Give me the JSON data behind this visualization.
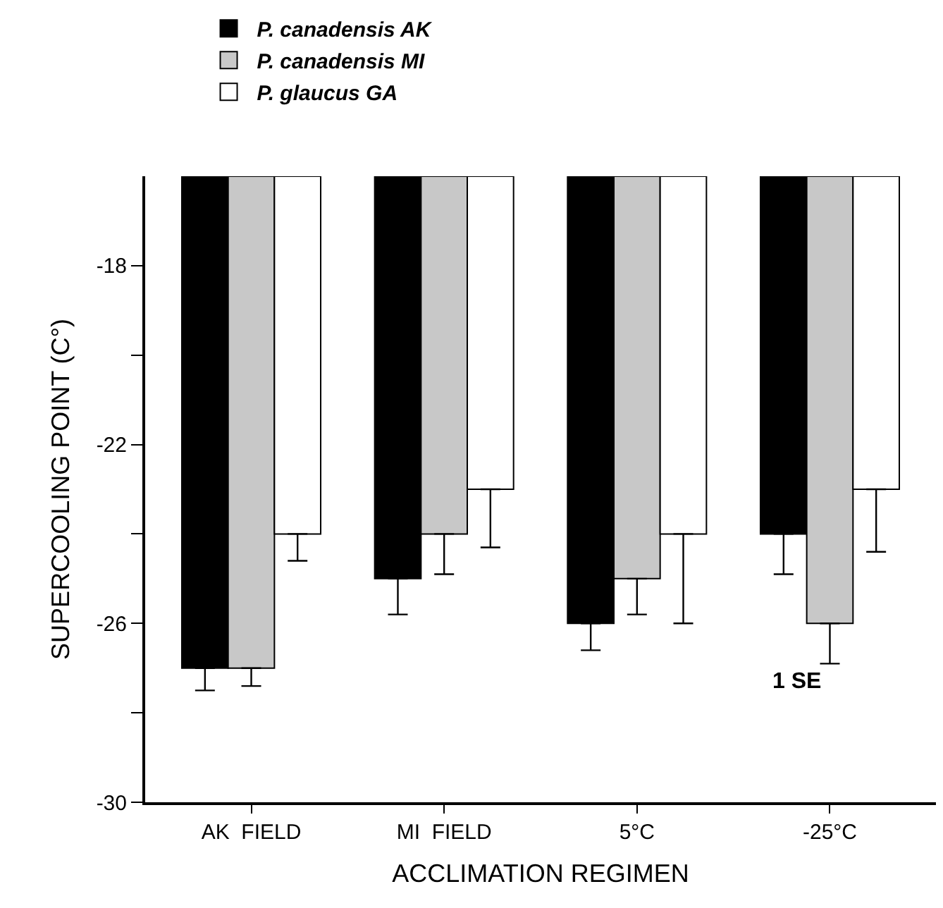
{
  "chart_data": {
    "type": "bar",
    "xlabel": "ACCLIMATION REGIMEN",
    "ylabel": "SUPERCOOLING POINT (C°)",
    "categories": [
      "AK  FIELD",
      "MI  FIELD",
      "5°C",
      "-25°C"
    ],
    "series": [
      {
        "name": "P. canadensis AK",
        "color": "#000000",
        "values": [
          -27.0,
          -25.0,
          -26.0,
          -24.0
        ],
        "errors": [
          [
            -27.5,
            -27.0
          ],
          [
            -25.8,
            -25.0
          ],
          [
            -26.6,
            -26.0
          ],
          [
            -24.9,
            -24.0
          ]
        ]
      },
      {
        "name": "P. canadensis MI",
        "color": "#c8c8c8",
        "values": [
          -27.0,
          -24.0,
          -25.0,
          -26.0
        ],
        "errors": [
          [
            -27.4,
            -27.0
          ],
          [
            -24.9,
            -24.0
          ],
          [
            -25.8,
            -25.0
          ],
          [
            -26.9,
            -26.0
          ]
        ]
      },
      {
        "name": "P. glaucus GA",
        "color": "#ffffff",
        "values": [
          -24.0,
          -23.0,
          -24.0,
          -23.0
        ],
        "errors": [
          [
            -24.6,
            -24.0
          ],
          [
            -24.3,
            -23.0
          ],
          [
            -26.0,
            -24.0
          ],
          [
            -24.4,
            -23.0
          ]
        ]
      }
    ],
    "ylim": [
      -30,
      -16
    ],
    "yticks": [
      -18,
      {
        "value": -20,
        "label": null
      },
      -22,
      {
        "value": -24,
        "label": null
      },
      -26,
      {
        "value": -28,
        "label": null
      },
      -30
    ],
    "annotations": [
      "1 SE"
    ],
    "legend": "top left"
  }
}
